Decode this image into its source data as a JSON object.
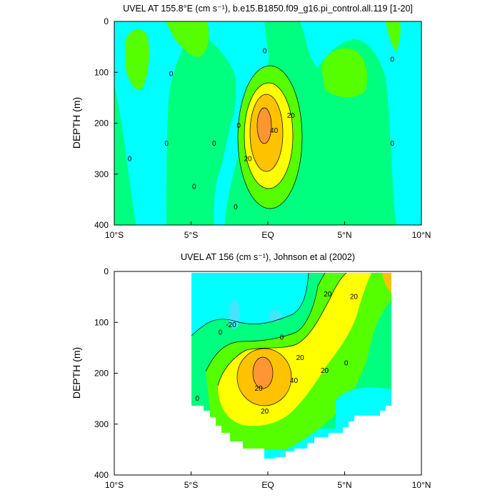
{
  "colors": {
    "le0": "#00ffff",
    "c0_10": "#00ff7f",
    "c10_20": "#55ff00",
    "c20_30": "#ffff00",
    "c30_40": "#ffc200",
    "c40_50": "#ff9632",
    "neg": "#44e4ff",
    "missing": "#ffffff"
  },
  "chart_data": [
    {
      "type": "heatmap",
      "title": "UVEL AT 155.8°E (cm s⁻¹), b.e15.B1850.f09_g16.pi_control.all.119 [1-20]",
      "ylabel": "DEPTH (m)",
      "xlim": [
        -10,
        10
      ],
      "ylim": [
        400,
        0
      ],
      "x_ticks": [
        -10,
        -5,
        0,
        5,
        10
      ],
      "x_tick_labels": [
        "10°S",
        "5°S",
        "EQ",
        "5°N",
        "10°N"
      ],
      "y_ticks": [
        0,
        100,
        200,
        300,
        400
      ],
      "y_tick_labels": [
        "0",
        "100",
        "200",
        "300",
        "400"
      ],
      "contour_levels": [
        0,
        10,
        20,
        30,
        40
      ],
      "jet_core": {
        "lat": -0.2,
        "depth": 200,
        "max": 45
      },
      "contour_labels": [
        {
          "text": "0",
          "lat": -9,
          "depth": 270
        },
        {
          "text": "0",
          "lat": -6.3,
          "depth": 103
        },
        {
          "text": "0",
          "lat": -6.6,
          "depth": 240
        },
        {
          "text": "0",
          "lat": -4.8,
          "depth": 325
        },
        {
          "text": "0",
          "lat": -3.5,
          "depth": 240
        },
        {
          "text": "0",
          "lat": -2.1,
          "depth": 365
        },
        {
          "text": "0",
          "lat": -0.2,
          "depth": 58
        },
        {
          "text": "0",
          "lat": -1.9,
          "depth": 205
        },
        {
          "text": "0",
          "lat": 8.1,
          "depth": 75
        },
        {
          "text": "0",
          "lat": 8.1,
          "depth": 240
        },
        {
          "text": "20",
          "lat": -1.3,
          "depth": 270
        },
        {
          "text": "40",
          "lat": 0.4,
          "depth": 215
        },
        {
          "text": "20",
          "lat": 1.5,
          "depth": 185
        }
      ]
    },
    {
      "type": "heatmap",
      "title": "UVEL AT 156 (cm s⁻¹), Johnson et al (2002)",
      "ylabel": "DEPTH (m)",
      "xlim": [
        -10,
        10
      ],
      "ylim": [
        400,
        0
      ],
      "x_ticks": [
        -10,
        -5,
        0,
        5,
        10
      ],
      "x_tick_labels": [
        "10°S",
        "5°S",
        "EQ",
        "5°N",
        "10°N"
      ],
      "y_ticks": [
        0,
        100,
        200,
        300,
        400
      ],
      "y_tick_labels": [
        "0",
        "100",
        "200",
        "300",
        "400"
      ],
      "contour_levels": [
        0,
        10,
        20,
        30,
        40
      ],
      "data_lat_range": [
        -5,
        8
      ],
      "jet_core": {
        "lat": -0.3,
        "depth": 205,
        "max": 45
      },
      "contour_labels": [
        {
          "text": "0",
          "lat": -3.1,
          "depth": 120
        },
        {
          "text": "-20",
          "lat": -2.4,
          "depth": 105
        },
        {
          "text": "0",
          "lat": 0.9,
          "depth": 130
        },
        {
          "text": "0",
          "lat": -4.6,
          "depth": 250
        },
        {
          "text": "20",
          "lat": -0.6,
          "depth": 230
        },
        {
          "text": "40",
          "lat": 1.7,
          "depth": 215
        },
        {
          "text": "20",
          "lat": -0.2,
          "depth": 275
        },
        {
          "text": "20",
          "lat": 2.1,
          "depth": 170
        },
        {
          "text": "20",
          "lat": 3.7,
          "depth": 195
        },
        {
          "text": "0",
          "lat": 5.1,
          "depth": 180
        },
        {
          "text": "20",
          "lat": 3.9,
          "depth": 45
        },
        {
          "text": "20",
          "lat": 5.6,
          "depth": 50
        }
      ]
    }
  ]
}
